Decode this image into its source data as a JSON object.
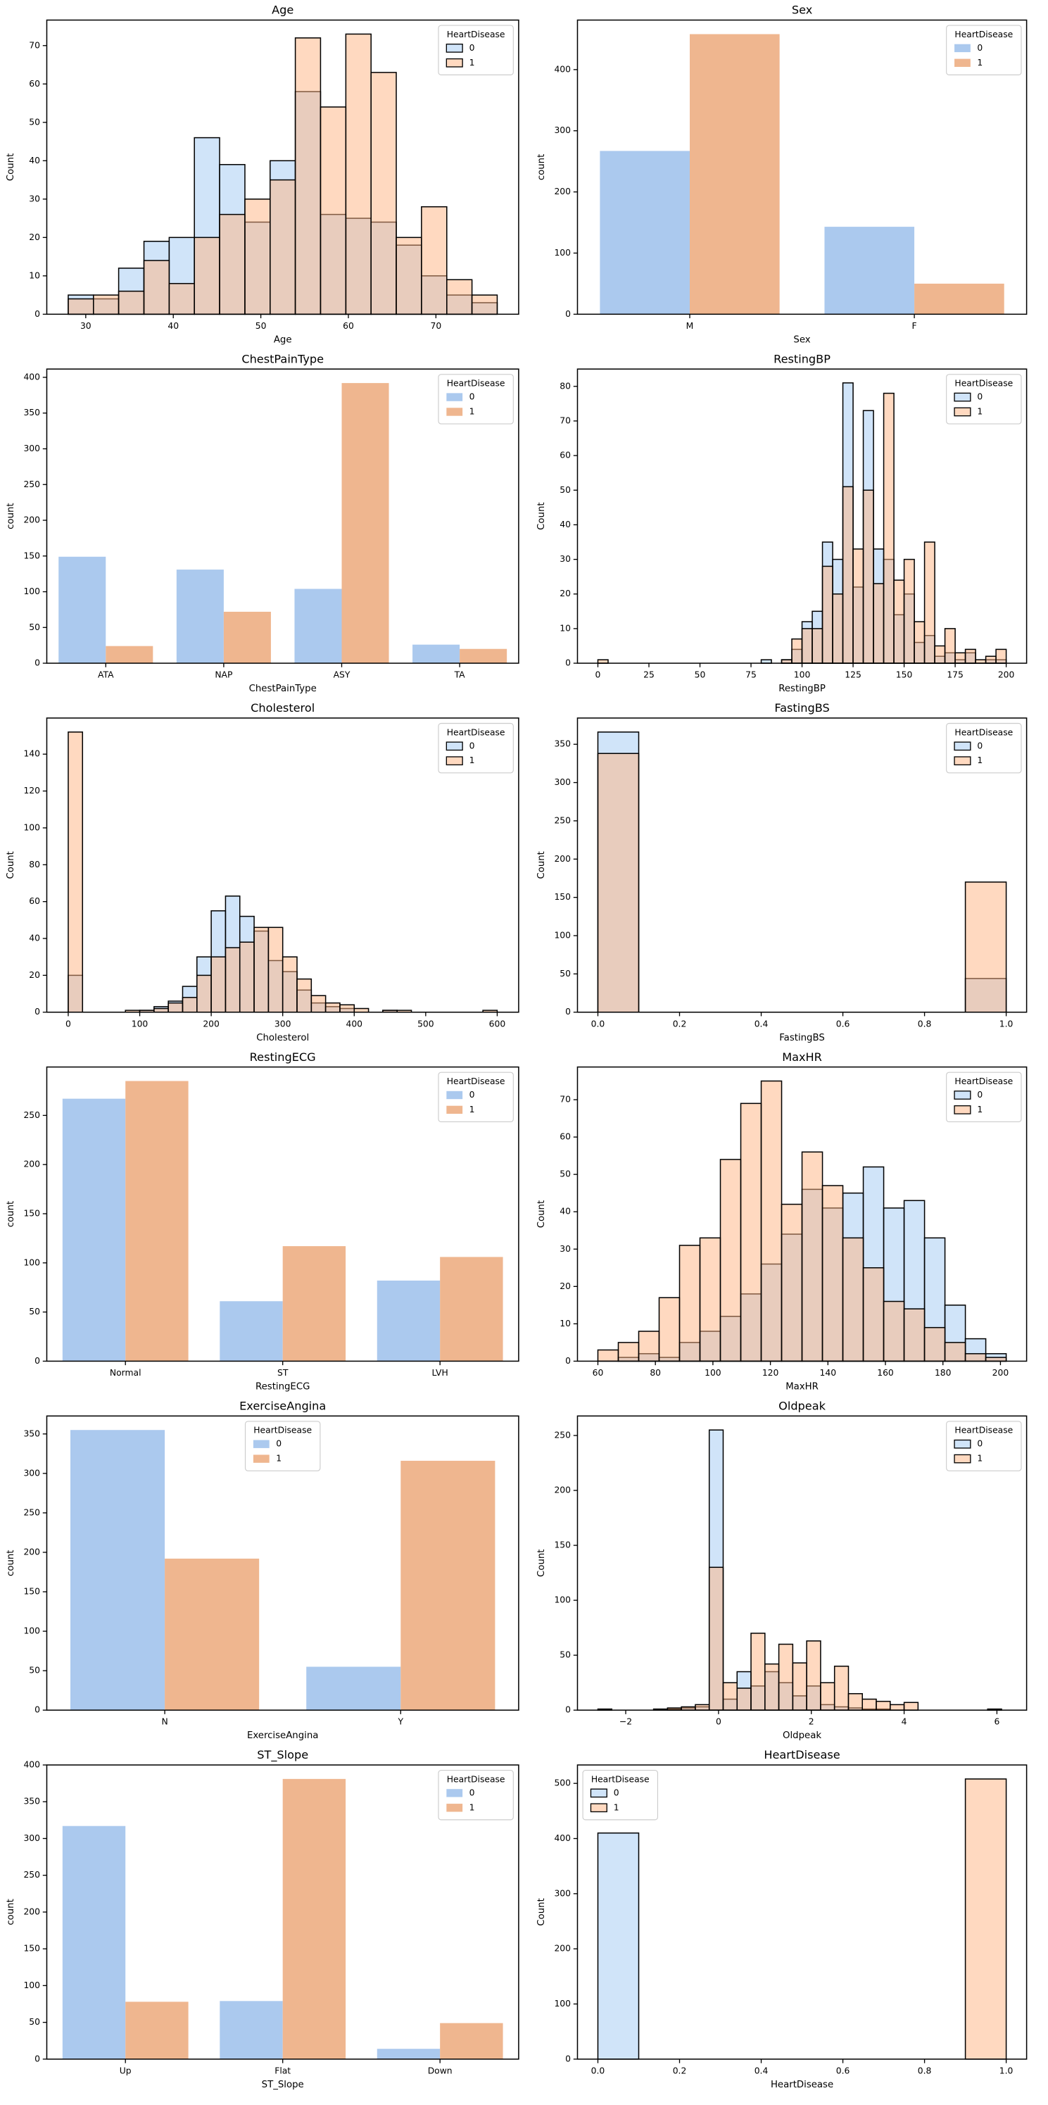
{
  "chart_data": [
    {
      "type": "histogram",
      "title": "Age",
      "x_label": "Age",
      "y_label": "Count",
      "legend_title": "HeartDisease",
      "legend": "upper right",
      "bins": [
        28,
        30.88,
        33.76,
        36.65,
        39.53,
        42.41,
        45.29,
        48.18,
        51.06,
        53.94,
        56.82,
        59.71,
        62.59,
        65.47,
        68.35,
        71.24,
        74.12,
        77
      ],
      "series": [
        {
          "name": "0",
          "color": "#a1c9f4",
          "values": [
            5,
            4,
            12,
            19,
            20,
            46,
            39,
            24,
            40,
            58,
            26,
            25,
            24,
            18,
            10,
            5,
            3
          ]
        },
        {
          "name": "1",
          "color": "#ffb482",
          "values": [
            4,
            5,
            6,
            14,
            8,
            20,
            26,
            30,
            35,
            72,
            54,
            73,
            63,
            20,
            28,
            9,
            5
          ]
        }
      ],
      "xlim": [
        25.55,
        79.45
      ],
      "xticks": [
        30,
        40,
        50,
        60,
        70
      ],
      "ylim": [
        0,
        76.65
      ],
      "yticks": [
        0,
        10,
        20,
        30,
        40,
        50,
        60,
        70
      ]
    },
    {
      "type": "bar",
      "title": "Sex",
      "x_label": "Sex",
      "y_label": "count",
      "legend_title": "HeartDisease",
      "legend": "upper right",
      "categories": [
        "M",
        "F"
      ],
      "series": [
        {
          "name": "0",
          "color": "#abc9ee",
          "values": [
            267,
            143
          ]
        },
        {
          "name": "1",
          "color": "#efb68f",
          "values": [
            458,
            50
          ]
        }
      ],
      "ylim": [
        0,
        481
      ],
      "yticks": [
        0,
        100,
        200,
        300,
        400
      ]
    },
    {
      "type": "bar",
      "title": "ChestPainType",
      "x_label": "ChestPainType",
      "y_label": "count",
      "legend_title": "HeartDisease",
      "legend": "upper right",
      "categories": [
        "ATA",
        "NAP",
        "ASY",
        "TA"
      ],
      "series": [
        {
          "name": "0",
          "color": "#abc9ee",
          "values": [
            149,
            131,
            104,
            26
          ]
        },
        {
          "name": "1",
          "color": "#efb68f",
          "values": [
            24,
            72,
            392,
            20
          ]
        }
      ],
      "ylim": [
        0,
        411.6
      ],
      "yticks": [
        0,
        50,
        100,
        150,
        200,
        250,
        300,
        350,
        400
      ]
    },
    {
      "type": "histogram",
      "title": "RestingBP",
      "x_label": "RestingBP",
      "y_label": "Count",
      "legend_title": "HeartDisease",
      "legend": "upper right",
      "bins": [
        0,
        5,
        10,
        15,
        20,
        25,
        30,
        35,
        40,
        45,
        50,
        55,
        60,
        65,
        70,
        75,
        80,
        85,
        90,
        95,
        100,
        105,
        110,
        115,
        120,
        125,
        130,
        135,
        140,
        145,
        150,
        155,
        160,
        165,
        170,
        175,
        180,
        185,
        190,
        195,
        200
      ],
      "series": [
        {
          "name": "0",
          "color": "#a1c9f4",
          "values": [
            0,
            0,
            0,
            0,
            0,
            0,
            0,
            0,
            0,
            0,
            0,
            0,
            0,
            0,
            0,
            0,
            1,
            0,
            1,
            4,
            12,
            15,
            35,
            30,
            81,
            22,
            73,
            33,
            30,
            14,
            20,
            6,
            8,
            2,
            3,
            1,
            3,
            0,
            1,
            1
          ]
        },
        {
          "name": "1",
          "color": "#ffb482",
          "values": [
            1,
            0,
            0,
            0,
            0,
            0,
            0,
            0,
            0,
            0,
            0,
            0,
            0,
            0,
            0,
            0,
            0,
            0,
            1,
            7,
            10,
            10,
            28,
            20,
            51,
            33,
            50,
            23,
            78,
            24,
            30,
            12,
            35,
            5,
            10,
            3,
            4,
            1,
            2,
            4
          ]
        }
      ],
      "xlim": [
        -10,
        210
      ],
      "xticks": [
        0,
        25,
        50,
        75,
        100,
        125,
        150,
        175,
        200
      ],
      "ylim": [
        0,
        85
      ],
      "yticks": [
        0,
        10,
        20,
        30,
        40,
        50,
        60,
        70,
        80
      ]
    },
    {
      "type": "histogram",
      "title": "Cholesterol",
      "x_label": "Cholesterol",
      "y_label": "Count",
      "legend_title": "HeartDisease",
      "legend": "upper right",
      "bins": [
        0,
        20,
        40,
        60,
        80,
        100,
        120,
        140,
        160,
        180,
        200,
        220,
        240,
        260,
        280,
        300,
        320,
        340,
        360,
        380,
        400,
        420,
        440,
        460,
        480,
        500,
        520,
        540,
        560,
        580,
        600
      ],
      "series": [
        {
          "name": "0",
          "color": "#a1c9f4",
          "values": [
            20,
            0,
            0,
            0,
            0,
            1,
            3,
            6,
            14,
            30,
            55,
            63,
            52,
            44,
            28,
            22,
            12,
            5,
            3,
            2,
            0,
            0,
            1,
            0,
            0,
            0,
            0,
            0,
            0,
            0
          ]
        },
        {
          "name": "1",
          "color": "#ffb482",
          "values": [
            152,
            0,
            0,
            0,
            1,
            1,
            2,
            5,
            8,
            20,
            30,
            35,
            38,
            46,
            46,
            30,
            18,
            9,
            5,
            4,
            2,
            0,
            1,
            1,
            0,
            0,
            0,
            0,
            0,
            1
          ]
        }
      ],
      "xlim": [
        -30,
        630
      ],
      "xticks": [
        0,
        100,
        200,
        300,
        400,
        500,
        600
      ],
      "ylim": [
        0,
        159.6
      ],
      "yticks": [
        0,
        20,
        40,
        60,
        80,
        100,
        120,
        140
      ]
    },
    {
      "type": "histogram",
      "title": "FastingBS",
      "x_label": "FastingBS",
      "y_label": "Count",
      "legend_title": "HeartDisease",
      "legend": "upper right",
      "bins": [
        0,
        0.1,
        0.2,
        0.3,
        0.4,
        0.5,
        0.6,
        0.7,
        0.8,
        0.9,
        1
      ],
      "series": [
        {
          "name": "0",
          "color": "#a1c9f4",
          "values": [
            366,
            0,
            0,
            0,
            0,
            0,
            0,
            0,
            0,
            44
          ]
        },
        {
          "name": "1",
          "color": "#ffb482",
          "values": [
            338,
            0,
            0,
            0,
            0,
            0,
            0,
            0,
            0,
            170
          ]
        }
      ],
      "xlim": [
        -0.05,
        1.05
      ],
      "xticks": [
        {
          "value": 0,
          "label": "0.0"
        },
        {
          "value": 0.2,
          "label": "0.2"
        },
        {
          "value": 0.4,
          "label": "0.4"
        },
        {
          "value": 0.6,
          "label": "0.6"
        },
        {
          "value": 0.8,
          "label": "0.8"
        },
        {
          "value": 1,
          "label": "1.0"
        }
      ],
      "ylim": [
        0,
        384.3
      ],
      "yticks": [
        0,
        50,
        100,
        150,
        200,
        250,
        300,
        350
      ]
    },
    {
      "type": "bar",
      "title": "RestingECG",
      "x_label": "RestingECG",
      "y_label": "count",
      "legend_title": "HeartDisease",
      "legend": "upper right",
      "categories": [
        "Normal",
        "ST",
        "LVH"
      ],
      "series": [
        {
          "name": "0",
          "color": "#abc9ee",
          "values": [
            267,
            61,
            82
          ]
        },
        {
          "name": "1",
          "color": "#efb68f",
          "values": [
            285,
            117,
            106
          ]
        }
      ],
      "ylim": [
        0,
        299.25
      ],
      "yticks": [
        0,
        50,
        100,
        150,
        200,
        250
      ]
    },
    {
      "type": "histogram",
      "title": "MaxHR",
      "x_label": "MaxHR",
      "y_label": "Count",
      "legend_title": "HeartDisease",
      "legend": "upper right",
      "bins": [
        60,
        67.1,
        74.2,
        81.3,
        88.4,
        95.5,
        102.6,
        109.7,
        116.8,
        123.9,
        131,
        138.1,
        145.2,
        152.3,
        159.4,
        166.5,
        173.6,
        180.7,
        187.8,
        194.9,
        202
      ],
      "series": [
        {
          "name": "0",
          "color": "#a1c9f4",
          "values": [
            0,
            1,
            2,
            1,
            5,
            8,
            12,
            18,
            26,
            34,
            46,
            41,
            45,
            52,
            41,
            43,
            33,
            15,
            6,
            2
          ]
        },
        {
          "name": "1",
          "color": "#ffb482",
          "values": [
            3,
            5,
            8,
            17,
            31,
            33,
            54,
            69,
            75,
            42,
            56,
            47,
            33,
            25,
            16,
            14,
            9,
            5,
            2,
            1
          ]
        }
      ],
      "xlim": [
        52.9,
        209.1
      ],
      "xticks": [
        60,
        80,
        100,
        120,
        140,
        160,
        180,
        200
      ],
      "ylim": [
        0,
        78.75
      ],
      "yticks": [
        0,
        10,
        20,
        30,
        40,
        50,
        60,
        70
      ]
    },
    {
      "type": "bar",
      "title": "ExerciseAngina",
      "x_label": "ExerciseAngina",
      "y_label": "count",
      "legend_title": "HeartDisease",
      "legend": "upper center",
      "categories": [
        "N",
        "Y"
      ],
      "series": [
        {
          "name": "0",
          "color": "#abc9ee",
          "values": [
            355,
            55
          ]
        },
        {
          "name": "1",
          "color": "#efb68f",
          "values": [
            192,
            316
          ]
        }
      ],
      "ylim": [
        0,
        372.75
      ],
      "yticks": [
        0,
        50,
        100,
        150,
        200,
        250,
        300,
        350
      ]
    },
    {
      "type": "histogram",
      "title": "Oldpeak",
      "x_label": "Oldpeak",
      "y_label": "Count",
      "legend_title": "HeartDisease",
      "legend": "upper right",
      "bins": [
        -2.6,
        -2.3,
        -2,
        -1.7,
        -1.4,
        -1.1,
        -0.8,
        -0.5,
        -0.2,
        0.1,
        0.4,
        0.7,
        1,
        1.3,
        1.6,
        1.9,
        2.2,
        2.5,
        2.8,
        3.1,
        3.4,
        3.7,
        4,
        4.3,
        4.6,
        4.9,
        5.2,
        5.5,
        5.8,
        6.1
      ],
      "series": [
        {
          "name": "0",
          "color": "#a1c9f4",
          "values": [
            0,
            0,
            0,
            0,
            0,
            1,
            2,
            3,
            255,
            10,
            35,
            22,
            35,
            25,
            13,
            22,
            5,
            3,
            2,
            1,
            1,
            0,
            0,
            0,
            0,
            0,
            0,
            0,
            0
          ]
        },
        {
          "name": "1",
          "color": "#ffb482",
          "values": [
            1,
            0,
            0,
            0,
            1,
            2,
            3,
            5,
            130,
            25,
            20,
            70,
            42,
            60,
            43,
            63,
            25,
            40,
            15,
            10,
            8,
            5,
            7,
            0,
            0,
            0,
            0,
            0,
            1
          ]
        }
      ],
      "xlim": [
        -3.04,
        6.64
      ],
      "xticks": [
        {
          "value": -2,
          "label": "−2"
        },
        0,
        2,
        4,
        6
      ],
      "ylim": [
        0,
        267.75
      ],
      "yticks": [
        0,
        50,
        100,
        150,
        200,
        250
      ]
    },
    {
      "type": "bar",
      "title": "ST_Slope",
      "x_label": "ST_Slope",
      "y_label": "count",
      "legend_title": "HeartDisease",
      "legend": "upper right",
      "categories": [
        "Up",
        "Flat",
        "Down"
      ],
      "series": [
        {
          "name": "0",
          "color": "#abc9ee",
          "values": [
            317,
            79,
            14
          ]
        },
        {
          "name": "1",
          "color": "#efb68f",
          "values": [
            78,
            381,
            49
          ]
        }
      ],
      "ylim": [
        0,
        400
      ],
      "yticks": [
        0,
        50,
        100,
        150,
        200,
        250,
        300,
        350,
        400
      ]
    },
    {
      "type": "histogram",
      "title": "HeartDisease",
      "x_label": "HeartDisease",
      "y_label": "Count",
      "legend_title": "HeartDisease",
      "legend": "upper left",
      "bins": [
        0,
        0.1,
        0.2,
        0.3,
        0.4,
        0.5,
        0.6,
        0.7,
        0.8,
        0.9,
        1
      ],
      "series": [
        {
          "name": "0",
          "color": "#a1c9f4",
          "values": [
            410,
            0,
            0,
            0,
            0,
            0,
            0,
            0,
            0,
            0
          ]
        },
        {
          "name": "1",
          "color": "#ffb482",
          "values": [
            0,
            0,
            0,
            0,
            0,
            0,
            0,
            0,
            0,
            508
          ]
        }
      ],
      "xlim": [
        -0.05,
        1.05
      ],
      "xticks": [
        {
          "value": 0,
          "label": "0.0"
        },
        {
          "value": 0.2,
          "label": "0.2"
        },
        {
          "value": 0.4,
          "label": "0.4"
        },
        {
          "value": 0.6,
          "label": "0.6"
        },
        {
          "value": 0.8,
          "label": "0.8"
        },
        {
          "value": 1,
          "label": "1.0"
        }
      ],
      "ylim": [
        0,
        533.4
      ],
      "yticks": [
        0,
        100,
        200,
        300,
        400,
        500
      ]
    }
  ]
}
